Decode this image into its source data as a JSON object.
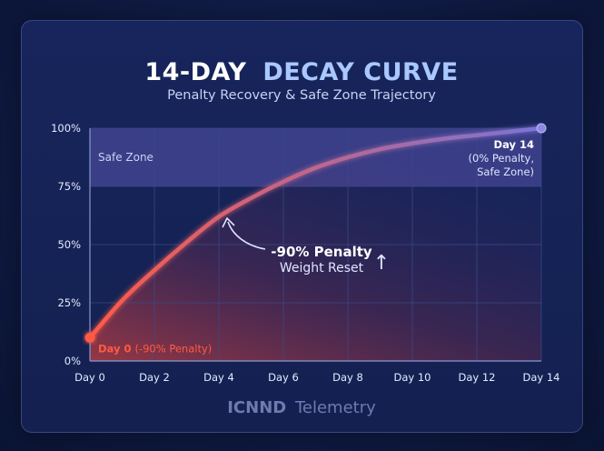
{
  "chart_data": {
    "type": "line",
    "title_part1": "14-DAY",
    "title_part2": "DECAY CURVE",
    "subtitle": "Penalty Recovery & Safe Zone Trajectory",
    "x": [
      0,
      1,
      2,
      3,
      4,
      5,
      6,
      7,
      8,
      9,
      10,
      11,
      12,
      13,
      14
    ],
    "y": [
      10,
      26,
      39,
      51,
      62,
      70,
      77,
      83,
      87.5,
      91,
      93.5,
      95.5,
      97,
      98.5,
      100
    ],
    "x_tick_labels": [
      "Day 0",
      "Day 2",
      "Day 4",
      "Day 6",
      "Day 8",
      "Day 10",
      "Day 12",
      "Day 14"
    ],
    "x_tick_values": [
      0,
      2,
      4,
      6,
      8,
      10,
      12,
      14
    ],
    "y_tick_labels": [
      "0%",
      "25%",
      "50%",
      "75%",
      "100%"
    ],
    "y_tick_values": [
      0,
      25,
      50,
      75,
      100
    ],
    "xlim": [
      0,
      14
    ],
    "ylim": [
      0,
      100
    ],
    "grid": true,
    "safe_zone": {
      "label": "Safe Zone",
      "from": 75,
      "to": 100
    },
    "annotations": {
      "start": {
        "day_label": "Day 0",
        "detail": "(-90% Penalty)",
        "x": 0,
        "y": 10
      },
      "end": {
        "line1": "Day 14",
        "line2": "(0% Penalty,",
        "line3": "Safe Zone)",
        "x": 14,
        "y": 100
      },
      "middle": {
        "line1": "-90% Penalty",
        "line2": "Weight Reset",
        "arrow_glyph": "↑"
      }
    },
    "footer_part1": "ICNND",
    "footer_part2": "Telemetry",
    "colors": {
      "curve_start": "#ff5a45",
      "curve_end": "#7b74d6",
      "safe_zone_fill": "#6c63c8",
      "start_label": "#ff5a45",
      "text_light": "#e6ebff",
      "text_muted": "#aab4d8",
      "grid": "#3a4a86"
    }
  }
}
